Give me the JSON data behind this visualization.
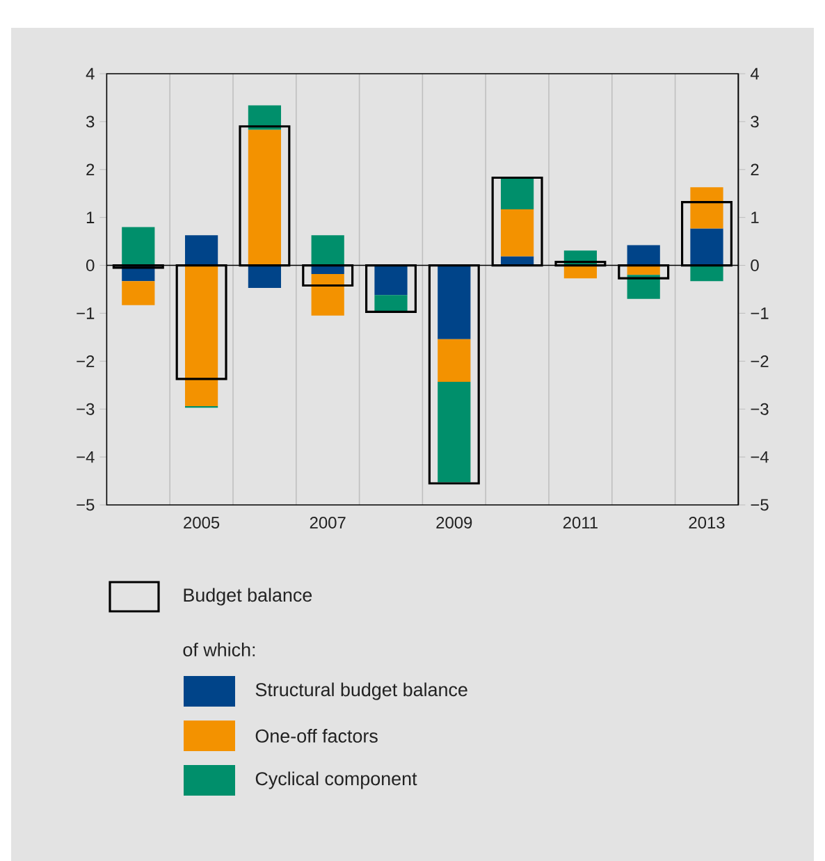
{
  "chart_data": [
    {
      "type": "bar",
      "stacked": true,
      "categories": [
        null,
        "2005",
        null,
        "2007",
        null,
        "2009",
        null,
        "2011",
        null,
        "2013"
      ],
      "series": [
        {
          "name": "Structural budget balance",
          "color": "#004489",
          "values": [
            -0.33,
            0.63,
            -0.47,
            -0.18,
            -0.62,
            -1.54,
            0.19,
            0,
            0.42,
            0.77
          ]
        },
        {
          "name": "One-off factors",
          "color": "#f39200",
          "values": [
            -0.5,
            -2.94,
            2.83,
            -0.87,
            0,
            -0.89,
            0.98,
            -0.27,
            -0.2,
            0.86
          ]
        },
        {
          "name": "Cyclical component",
          "color": "#008f6b",
          "values": [
            0.8,
            -0.03,
            0.51,
            0.63,
            -0.35,
            -2.1,
            0.66,
            0.31,
            -0.5,
            -0.33
          ]
        }
      ],
      "ylim": [
        -5,
        4
      ],
      "yticks": [
        {
          "value": -5,
          "label": "−5"
        },
        {
          "value": -4,
          "label": "−4"
        },
        {
          "value": -3,
          "label": "−3"
        },
        {
          "value": -2,
          "label": "−2"
        },
        {
          "value": -1,
          "label": "−1"
        },
        0,
        1,
        2,
        3,
        4
      ],
      "y2lim": [
        -5,
        4
      ],
      "y2ticks": [
        {
          "value": -5,
          "label": "−5"
        },
        {
          "value": -4,
          "label": "−4"
        },
        {
          "value": -3,
          "label": "−3"
        },
        {
          "value": -2,
          "label": "−2"
        },
        {
          "value": -1,
          "label": "−1"
        },
        0,
        1,
        2,
        3,
        4
      ],
      "grid": "x",
      "legend": "bottom",
      "annotations": [
        "of which:"
      ]
    },
    {
      "type": "bar",
      "categories": [
        null,
        "2005",
        null,
        "2007",
        null,
        "2009",
        null,
        "2011",
        null,
        "2013"
      ],
      "series": [
        {
          "name": "Budget balance",
          "color": "#000000",
          "values": [
            -0.05,
            -2.37,
            2.9,
            -0.42,
            -0.97,
            -4.55,
            1.83,
            0.07,
            -0.27,
            1.32
          ]
        }
      ],
      "ylim": [
        -5,
        4
      ],
      "tick_labels": false,
      "legend": "bottom"
    }
  ]
}
